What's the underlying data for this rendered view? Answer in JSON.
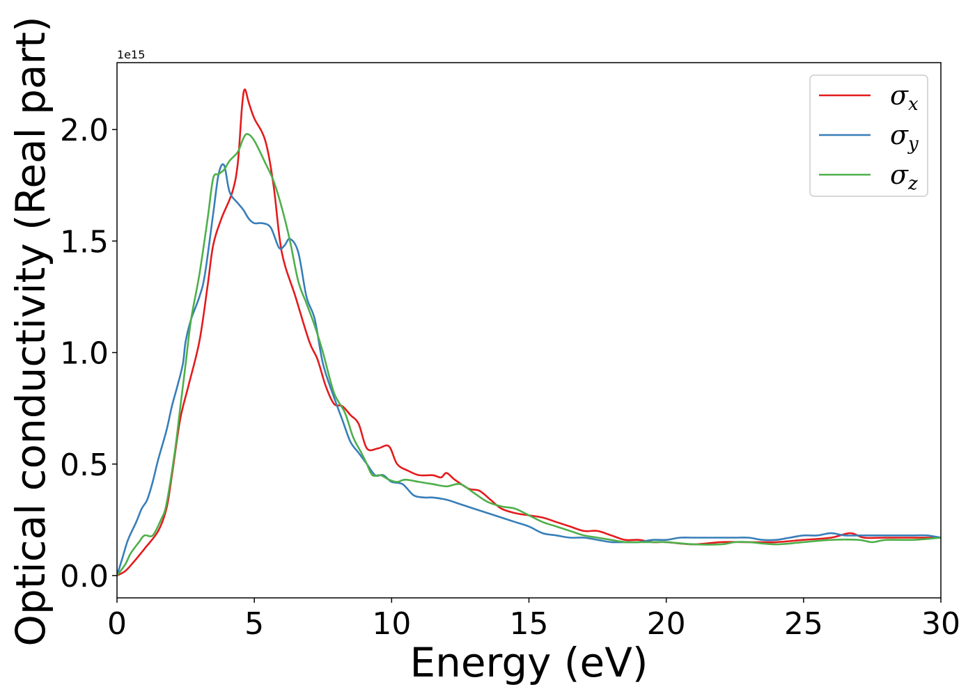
{
  "chart_data": {
    "type": "line",
    "title": "",
    "xlabel": "Energy (eV)",
    "ylabel": "Optical conductivity (Real part)",
    "y_offset_text": "1e15",
    "y_scale_factor": 1000000000000000.0,
    "xlim": [
      0,
      30
    ],
    "ylim": [
      -0.1,
      2.3
    ],
    "x_ticks": [
      0,
      5,
      10,
      15,
      20,
      25,
      30
    ],
    "x_tick_labels": [
      "0",
      "5",
      "10",
      "15",
      "20",
      "25",
      "30"
    ],
    "y_ticks": [
      0.0,
      0.5,
      1.0,
      1.5,
      2.0
    ],
    "y_tick_labels": [
      "0.0",
      "0.5",
      "1.0",
      "1.5",
      "2.0"
    ],
    "grid": false,
    "legend_position": "top-right",
    "series": [
      {
        "name": "σx",
        "symbol": "σ",
        "subscript": "x",
        "color": "#e41a1c",
        "points": [
          [
            0,
            0
          ],
          [
            0.3,
            0.02
          ],
          [
            0.6,
            0.06
          ],
          [
            1.0,
            0.12
          ],
          [
            1.5,
            0.2
          ],
          [
            1.8,
            0.3
          ],
          [
            2.0,
            0.45
          ],
          [
            2.3,
            0.7
          ],
          [
            2.6,
            0.85
          ],
          [
            3.0,
            1.05
          ],
          [
            3.3,
            1.3
          ],
          [
            3.5,
            1.48
          ],
          [
            3.8,
            1.6
          ],
          [
            4.2,
            1.72
          ],
          [
            4.4,
            1.85
          ],
          [
            4.55,
            2.1
          ],
          [
            4.65,
            2.18
          ],
          [
            4.8,
            2.12
          ],
          [
            5.0,
            2.05
          ],
          [
            5.4,
            1.95
          ],
          [
            5.7,
            1.75
          ],
          [
            6.0,
            1.45
          ],
          [
            6.5,
            1.25
          ],
          [
            7.0,
            1.05
          ],
          [
            7.3,
            0.97
          ],
          [
            7.6,
            0.85
          ],
          [
            7.9,
            0.77
          ],
          [
            8.2,
            0.76
          ],
          [
            8.5,
            0.72
          ],
          [
            8.8,
            0.68
          ],
          [
            9.1,
            0.57
          ],
          [
            9.5,
            0.57
          ],
          [
            9.9,
            0.58
          ],
          [
            10.2,
            0.5
          ],
          [
            10.6,
            0.47
          ],
          [
            11.0,
            0.45
          ],
          [
            11.5,
            0.45
          ],
          [
            11.8,
            0.44
          ],
          [
            12.0,
            0.46
          ],
          [
            12.3,
            0.43
          ],
          [
            12.8,
            0.39
          ],
          [
            13.2,
            0.38
          ],
          [
            13.6,
            0.34
          ],
          [
            14.0,
            0.3
          ],
          [
            14.5,
            0.28
          ],
          [
            15.0,
            0.27
          ],
          [
            15.5,
            0.26
          ],
          [
            16.0,
            0.24
          ],
          [
            16.5,
            0.22
          ],
          [
            17.0,
            0.2
          ],
          [
            17.5,
            0.2
          ],
          [
            18.0,
            0.18
          ],
          [
            18.5,
            0.16
          ],
          [
            19.0,
            0.16
          ],
          [
            19.5,
            0.15
          ],
          [
            20.0,
            0.15
          ],
          [
            21.0,
            0.14
          ],
          [
            22.0,
            0.15
          ],
          [
            23.0,
            0.15
          ],
          [
            24.0,
            0.15
          ],
          [
            25.0,
            0.16
          ],
          [
            26.0,
            0.17
          ],
          [
            26.7,
            0.19
          ],
          [
            27.2,
            0.17
          ],
          [
            28.0,
            0.17
          ],
          [
            28.8,
            0.17
          ],
          [
            29.5,
            0.17
          ],
          [
            30.0,
            0.17
          ]
        ]
      },
      {
        "name": "σy",
        "symbol": "σ",
        "subscript": "y",
        "color": "#377eb8",
        "points": [
          [
            0,
            0
          ],
          [
            0.2,
            0.08
          ],
          [
            0.4,
            0.16
          ],
          [
            0.7,
            0.24
          ],
          [
            0.9,
            0.3
          ],
          [
            1.1,
            0.34
          ],
          [
            1.3,
            0.42
          ],
          [
            1.5,
            0.52
          ],
          [
            1.8,
            0.65
          ],
          [
            2.0,
            0.76
          ],
          [
            2.2,
            0.85
          ],
          [
            2.4,
            0.95
          ],
          [
            2.5,
            1.05
          ],
          [
            2.7,
            1.15
          ],
          [
            3.0,
            1.25
          ],
          [
            3.2,
            1.35
          ],
          [
            3.5,
            1.62
          ],
          [
            3.7,
            1.8
          ],
          [
            3.9,
            1.84
          ],
          [
            4.1,
            1.72
          ],
          [
            4.4,
            1.67
          ],
          [
            4.6,
            1.64
          ],
          [
            4.8,
            1.6
          ],
          [
            5.0,
            1.58
          ],
          [
            5.3,
            1.58
          ],
          [
            5.6,
            1.56
          ],
          [
            5.9,
            1.47
          ],
          [
            6.1,
            1.48
          ],
          [
            6.3,
            1.51
          ],
          [
            6.6,
            1.45
          ],
          [
            6.9,
            1.25
          ],
          [
            7.2,
            1.15
          ],
          [
            7.5,
            0.95
          ],
          [
            7.9,
            0.8
          ],
          [
            8.2,
            0.7
          ],
          [
            8.5,
            0.6
          ],
          [
            8.8,
            0.55
          ],
          [
            9.1,
            0.5
          ],
          [
            9.4,
            0.45
          ],
          [
            9.7,
            0.45
          ],
          [
            10.0,
            0.42
          ],
          [
            10.4,
            0.41
          ],
          [
            10.8,
            0.36
          ],
          [
            11.2,
            0.35
          ],
          [
            11.5,
            0.35
          ],
          [
            12.0,
            0.34
          ],
          [
            12.5,
            0.32
          ],
          [
            13.0,
            0.3
          ],
          [
            13.5,
            0.28
          ],
          [
            14.0,
            0.26
          ],
          [
            14.5,
            0.24
          ],
          [
            15.0,
            0.22
          ],
          [
            15.5,
            0.19
          ],
          [
            16.0,
            0.18
          ],
          [
            16.5,
            0.17
          ],
          [
            17.0,
            0.17
          ],
          [
            17.5,
            0.16
          ],
          [
            18.0,
            0.15
          ],
          [
            18.5,
            0.15
          ],
          [
            19.0,
            0.15
          ],
          [
            19.5,
            0.16
          ],
          [
            20.0,
            0.16
          ],
          [
            20.5,
            0.17
          ],
          [
            21.0,
            0.17
          ],
          [
            21.5,
            0.17
          ],
          [
            22.0,
            0.17
          ],
          [
            22.5,
            0.17
          ],
          [
            23.0,
            0.17
          ],
          [
            23.5,
            0.16
          ],
          [
            24.0,
            0.16
          ],
          [
            24.5,
            0.17
          ],
          [
            25.0,
            0.18
          ],
          [
            25.5,
            0.18
          ],
          [
            26.0,
            0.19
          ],
          [
            26.5,
            0.18
          ],
          [
            27.0,
            0.18
          ],
          [
            27.5,
            0.18
          ],
          [
            28.0,
            0.18
          ],
          [
            28.5,
            0.18
          ],
          [
            29.0,
            0.18
          ],
          [
            29.5,
            0.18
          ],
          [
            30.0,
            0.17
          ]
        ]
      },
      {
        "name": "σz",
        "symbol": "σ",
        "subscript": "z",
        "color": "#4daf4a",
        "points": [
          [
            0,
            0
          ],
          [
            0.3,
            0.05
          ],
          [
            0.5,
            0.1
          ],
          [
            0.8,
            0.15
          ],
          [
            1.0,
            0.18
          ],
          [
            1.3,
            0.18
          ],
          [
            1.6,
            0.25
          ],
          [
            1.8,
            0.32
          ],
          [
            2.1,
            0.55
          ],
          [
            2.3,
            0.75
          ],
          [
            2.5,
            0.95
          ],
          [
            2.7,
            1.15
          ],
          [
            3.0,
            1.35
          ],
          [
            3.3,
            1.6
          ],
          [
            3.5,
            1.78
          ],
          [
            3.7,
            1.8
          ],
          [
            3.9,
            1.82
          ],
          [
            4.1,
            1.86
          ],
          [
            4.4,
            1.9
          ],
          [
            4.6,
            1.96
          ],
          [
            4.75,
            1.98
          ],
          [
            5.0,
            1.95
          ],
          [
            5.4,
            1.85
          ],
          [
            5.7,
            1.77
          ],
          [
            6.0,
            1.65
          ],
          [
            6.3,
            1.5
          ],
          [
            6.6,
            1.32
          ],
          [
            6.9,
            1.22
          ],
          [
            7.2,
            1.12
          ],
          [
            7.5,
            1.0
          ],
          [
            7.9,
            0.82
          ],
          [
            8.3,
            0.73
          ],
          [
            8.6,
            0.62
          ],
          [
            8.9,
            0.55
          ],
          [
            9.1,
            0.5
          ],
          [
            9.3,
            0.45
          ],
          [
            9.6,
            0.45
          ],
          [
            9.9,
            0.43
          ],
          [
            10.2,
            0.42
          ],
          [
            10.5,
            0.43
          ],
          [
            11.0,
            0.42
          ],
          [
            11.5,
            0.41
          ],
          [
            12.0,
            0.4
          ],
          [
            12.5,
            0.41
          ],
          [
            13.0,
            0.37
          ],
          [
            13.5,
            0.33
          ],
          [
            14.0,
            0.31
          ],
          [
            14.5,
            0.3
          ],
          [
            15.0,
            0.27
          ],
          [
            15.5,
            0.24
          ],
          [
            16.0,
            0.22
          ],
          [
            16.5,
            0.2
          ],
          [
            17.0,
            0.18
          ],
          [
            17.5,
            0.17
          ],
          [
            18.0,
            0.16
          ],
          [
            18.5,
            0.15
          ],
          [
            19.0,
            0.15
          ],
          [
            19.5,
            0.15
          ],
          [
            20.0,
            0.15
          ],
          [
            21.0,
            0.14
          ],
          [
            22.0,
            0.14
          ],
          [
            22.5,
            0.15
          ],
          [
            23.0,
            0.15
          ],
          [
            24.0,
            0.14
          ],
          [
            25.0,
            0.15
          ],
          [
            26.0,
            0.16
          ],
          [
            27.0,
            0.16
          ],
          [
            27.5,
            0.15
          ],
          [
            28.0,
            0.16
          ],
          [
            29.0,
            0.16
          ],
          [
            30.0,
            0.17
          ]
        ]
      }
    ]
  }
}
